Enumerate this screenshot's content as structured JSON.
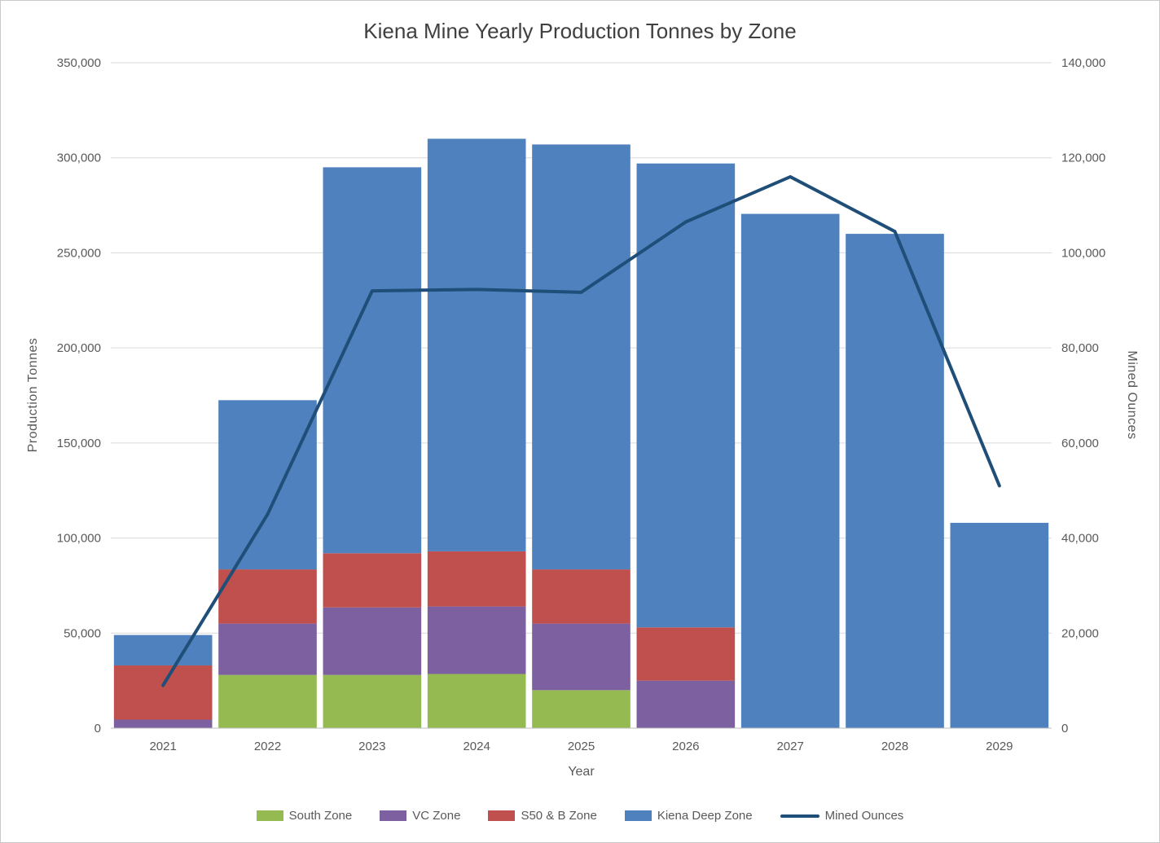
{
  "chart_data": {
    "type": "combo-stacked-bar-line",
    "title": "Kiena Mine Yearly Production Tonnes by Zone",
    "xlabel": "Year",
    "ylabel_left": "Production Tonnes",
    "ylabel_right": "Mined Ounces",
    "categories": [
      "2021",
      "2022",
      "2023",
      "2024",
      "2025",
      "2026",
      "2027",
      "2028",
      "2029"
    ],
    "bar_series": [
      {
        "name": "South Zone",
        "color": "#94BA51",
        "values": [
          0,
          28000,
          28000,
          28500,
          20000,
          0,
          0,
          0,
          0
        ]
      },
      {
        "name": "VC Zone",
        "color": "#7D60A0",
        "values": [
          4500,
          27000,
          35500,
          35500,
          35000,
          25000,
          0,
          0,
          0
        ]
      },
      {
        "name": "S50 & B Zone",
        "color": "#C0504D",
        "values": [
          28500,
          28500,
          28500,
          29000,
          28500,
          28000,
          0,
          0,
          0
        ]
      },
      {
        "name": "Kiena Deep Zone",
        "color": "#4E81BD",
        "values": [
          16000,
          89000,
          203000,
          217000,
          223500,
          244000,
          270500,
          260000,
          108000
        ]
      }
    ],
    "line_series": {
      "name": "Mined Ounces",
      "color": "#1F4E79",
      "values": [
        9000,
        45000,
        92000,
        92300,
        91700,
        106500,
        116000,
        104500,
        51000
      ]
    },
    "left_axis": {
      "min": 0,
      "max": 350000,
      "step": 50000,
      "tick_labels": [
        "0",
        "50,000",
        "100,000",
        "150,000",
        "200,000",
        "250,000",
        "300,000",
        "350,000"
      ]
    },
    "right_axis": {
      "min": 0,
      "max": 140000,
      "step": 20000,
      "tick_labels": [
        "0",
        "20,000",
        "40,000",
        "60,000",
        "80,000",
        "100,000",
        "120,000",
        "140,000"
      ]
    },
    "grid": true,
    "legend_position": "bottom"
  },
  "styles": {
    "grid_color": "#D9D9D9",
    "axis_line_color": "#BFBFBF",
    "axis_text_color": "#595959",
    "title_color": "#404040",
    "background": "#FFFFFF"
  }
}
